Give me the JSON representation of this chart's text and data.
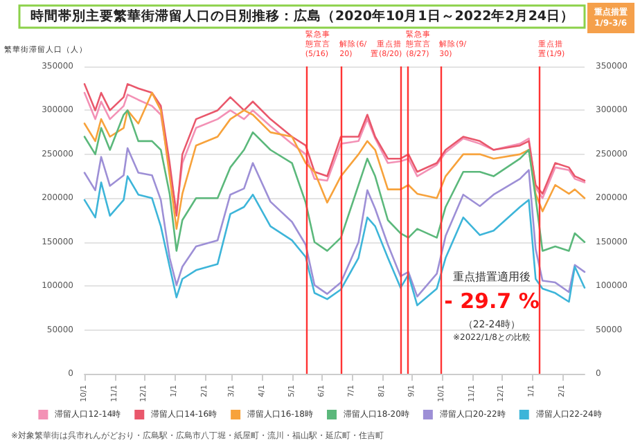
{
  "chart_data": {
    "type": "line",
    "title": "時間帯別主要繁華街滞留人口の日別推移：広島（2020年10月1日～2022年2月24日）",
    "ylabel": "繁華街滞留人口（人）",
    "annotations": [
      "重点措置\n1/9-3/6",
      "重点措置適用後",
      "- 29.7 %",
      "（22-24時）",
      "※2022/1/8との比較",
      "※対象繁華街は呉市れんがどおり・広島駅・広島市八丁堀・紙屋町・流川・福山駅・延広町・住吉町"
    ],
    "x": [
      "2020-10-01",
      "2020-10-12",
      "2020-10-18",
      "2020-10-27",
      "2020-11-10",
      "2020-11-14",
      "2020-11-25",
      "2020-12-09",
      "2020-12-18",
      "2020-12-27",
      "2021-01-03",
      "2021-01-09",
      "2021-01-23",
      "2021-02-14",
      "2021-02-27",
      "2021-03-13",
      "2021-03-22",
      "2021-04-09",
      "2021-05-01",
      "2021-05-15",
      "2021-05-24",
      "2021-06-06",
      "2021-06-20",
      "2021-07-08",
      "2021-07-17",
      "2021-07-25",
      "2021-08-07",
      "2021-08-20",
      "2021-08-28",
      "2021-09-06",
      "2021-09-26",
      "2021-10-05",
      "2021-10-23",
      "2021-11-09",
      "2021-11-23",
      "2021-12-20",
      "2021-12-29",
      "2022-01-05",
      "2022-01-12",
      "2022-01-25",
      "2022-02-08",
      "2022-02-14",
      "2022-02-24"
    ],
    "xlim": [
      "2020-10-01",
      "2022-02-24"
    ],
    "xticks": [
      {
        "value": "2020-10-01",
        "label": "10/1"
      },
      {
        "value": "2020-11-01",
        "label": "11/1"
      },
      {
        "value": "2020-12-01",
        "label": "12/1"
      },
      {
        "value": "2021-01-01",
        "label": "1/1"
      },
      {
        "value": "2021-02-01",
        "label": "2/1"
      },
      {
        "value": "2021-03-01",
        "label": "3/1"
      },
      {
        "value": "2021-04-01",
        "label": "4/1"
      },
      {
        "value": "2021-05-01",
        "label": "5/1"
      },
      {
        "value": "2021-06-01",
        "label": "6/1"
      },
      {
        "value": "2021-07-01",
        "label": "7/1"
      },
      {
        "value": "2021-08-01",
        "label": "8/1"
      },
      {
        "value": "2021-09-01",
        "label": "9/1"
      },
      {
        "value": "2021-10-01",
        "label": "10/1"
      },
      {
        "value": "2021-11-01",
        "label": "11/1"
      },
      {
        "value": "2021-12-01",
        "label": "12/1"
      },
      {
        "value": "2022-01-01",
        "label": "1/1"
      },
      {
        "value": "2022-02-01",
        "label": "2/1"
      }
    ],
    "ylim": [
      0,
      350000
    ],
    "yticks": [
      0,
      50000,
      100000,
      150000,
      200000,
      250000,
      300000,
      350000
    ],
    "y2lim": [
      0,
      350000
    ],
    "y2ticks": [
      0,
      50000,
      100000,
      150000,
      200000,
      250000,
      300000,
      350000
    ],
    "grid": "y",
    "legend": "bottom",
    "marker": "none",
    "line_style": "solid",
    "ref_lines": [
      {
        "axis": "x",
        "value": "2021-05-16",
        "label": "緊急事態宣言(5/16)",
        "color": "#ff3333"
      },
      {
        "axis": "x",
        "value": "2021-06-20",
        "label": "解除(6/20)",
        "color": "#ff3333"
      },
      {
        "axis": "x",
        "value": "2021-08-20",
        "label": "重点措置(8/20)",
        "color": "#ff3333"
      },
      {
        "axis": "x",
        "value": "2021-08-27",
        "label": "緊急事態宣言(8/27)",
        "color": "#ff3333"
      },
      {
        "axis": "x",
        "value": "2021-09-30",
        "label": "解除(9/30)",
        "color": "#ff3333"
      },
      {
        "axis": "x",
        "value": "2022-01-09",
        "label": "重点措置(1/9)",
        "color": "#ff3333"
      }
    ],
    "series": [
      {
        "name": "滞留人口12-14時",
        "color": "#f391b5",
        "values": [
          320000,
          290000,
          310000,
          290000,
          305000,
          318000,
          312000,
          305000,
          295000,
          232000,
          185000,
          240000,
          280000,
          290000,
          300000,
          290000,
          300000,
          282000,
          262000,
          250000,
          222000,
          220000,
          262000,
          265000,
          290000,
          268000,
          240000,
          242000,
          245000,
          225000,
          238000,
          252000,
          268000,
          262000,
          255000,
          262000,
          268000,
          212000,
          200000,
          235000,
          232000,
          222000,
          218000
        ]
      },
      {
        "name": "滞留人口14-16時",
        "color": "#e9576b",
        "values": [
          330000,
          300000,
          320000,
          300000,
          315000,
          330000,
          325000,
          320000,
          305000,
          240000,
          180000,
          250000,
          290000,
          300000,
          315000,
          300000,
          310000,
          290000,
          270000,
          260000,
          230000,
          225000,
          270000,
          270000,
          295000,
          270000,
          245000,
          245000,
          250000,
          230000,
          240000,
          255000,
          270000,
          265000,
          255000,
          260000,
          265000,
          215000,
          205000,
          240000,
          235000,
          225000,
          220000
        ]
      },
      {
        "name": "滞留人口16-18時",
        "color": "#f7a23b",
        "values": [
          285000,
          265000,
          290000,
          270000,
          280000,
          300000,
          285000,
          320000,
          300000,
          225000,
          165000,
          205000,
          260000,
          270000,
          290000,
          300000,
          295000,
          275000,
          270000,
          240000,
          230000,
          195000,
          225000,
          250000,
          265000,
          255000,
          210000,
          210000,
          215000,
          205000,
          200000,
          225000,
          250000,
          250000,
          245000,
          250000,
          255000,
          205000,
          185000,
          215000,
          205000,
          210000,
          200000
        ]
      },
      {
        "name": "滞留人口18-20時",
        "color": "#5bb87b",
        "values": [
          270000,
          250000,
          280000,
          255000,
          295000,
          300000,
          265000,
          265000,
          255000,
          205000,
          140000,
          175000,
          200000,
          200000,
          235000,
          255000,
          275000,
          255000,
          240000,
          195000,
          150000,
          140000,
          155000,
          215000,
          245000,
          225000,
          175000,
          160000,
          155000,
          165000,
          155000,
          190000,
          230000,
          230000,
          225000,
          245000,
          255000,
          200000,
          140000,
          145000,
          140000,
          160000,
          150000
        ]
      },
      {
        "name": "滞留人口20-22時",
        "color": "#9d8fd6",
        "values": [
          229000,
          209000,
          247000,
          214000,
          226000,
          257000,
          229000,
          226000,
          198000,
          132000,
          101000,
          122000,
          145000,
          152000,
          204000,
          211000,
          240000,
          196000,
          173000,
          147000,
          101000,
          91000,
          104000,
          150000,
          209000,
          188000,
          147000,
          111000,
          116000,
          88000,
          114000,
          157000,
          204000,
          191000,
          204000,
          222000,
          232000,
          142000,
          106000,
          104000,
          93000,
          124000,
          116000
        ]
      },
      {
        "name": "滞留人口22-24時",
        "color": "#3db5d9",
        "values": [
          198000,
          178000,
          218000,
          180000,
          198000,
          225000,
          204000,
          200000,
          168000,
          122000,
          87000,
          108000,
          118000,
          125000,
          182000,
          190000,
          204000,
          168000,
          152000,
          133000,
          92000,
          85000,
          96000,
          132000,
          178000,
          168000,
          132000,
          98000,
          113000,
          78000,
          97000,
          132000,
          178000,
          158000,
          163000,
          190000,
          198000,
          108000,
          97000,
          92000,
          82000,
          122000,
          98000
        ]
      }
    ]
  }
}
